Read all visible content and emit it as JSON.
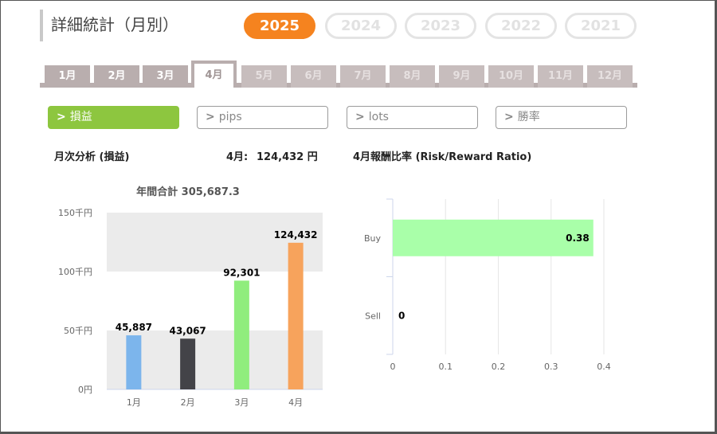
{
  "page": {
    "title": "詳細統計（月別）"
  },
  "years": [
    "2025",
    "2024",
    "2023",
    "2022",
    "2021"
  ],
  "selected_year": "2025",
  "months": [
    "1月",
    "2月",
    "3月",
    "4月",
    "5月",
    "6月",
    "7月",
    "8月",
    "9月",
    "10月",
    "11月",
    "12月"
  ],
  "selected_month": "4月",
  "metrics": {
    "chevron": ">",
    "items": [
      "損益",
      "pips",
      "lots",
      "勝率"
    ],
    "selected": "損益"
  },
  "left_panel": {
    "heading": "月次分析 (損益)",
    "month_label": "4月:",
    "month_value": "124,432 円",
    "total_label": "年間合計 305,687.3"
  },
  "right_panel": {
    "heading": "4月報酬比率 (Risk/Reward Ratio)"
  },
  "chart_data": [
    {
      "type": "bar",
      "title": "年間合計 305,687.3",
      "categories": [
        "1月",
        "2月",
        "3月",
        "4月"
      ],
      "values": [
        45887,
        43067,
        92301,
        124432
      ],
      "value_labels": [
        "45,887",
        "43,067",
        "92,301",
        "124,432"
      ],
      "bar_colors": [
        "#7cb5ec",
        "#434348",
        "#90ed7d",
        "#f7a35c"
      ],
      "y_ticks": [
        0,
        50000,
        100000,
        150000
      ],
      "y_tick_labels": [
        "0円",
        "50千円",
        "100千円",
        "150千円"
      ],
      "ylim": [
        0,
        150000
      ],
      "bands": "alternating gray/white",
      "legend": "none"
    },
    {
      "type": "bar",
      "orientation": "horizontal",
      "categories": [
        "Buy",
        "Sell"
      ],
      "values": [
        0.38,
        0
      ],
      "value_labels": [
        "0.38",
        "0"
      ],
      "bar_color": "#a9ffa9",
      "x_ticks": [
        0,
        0.1,
        0.2,
        0.3,
        0.4
      ],
      "x_tick_labels": [
        "0",
        "0.1",
        "0.2",
        "0.3",
        "0.4"
      ],
      "xlim": [
        0,
        0.4
      ],
      "grid": true,
      "legend": "none"
    }
  ]
}
